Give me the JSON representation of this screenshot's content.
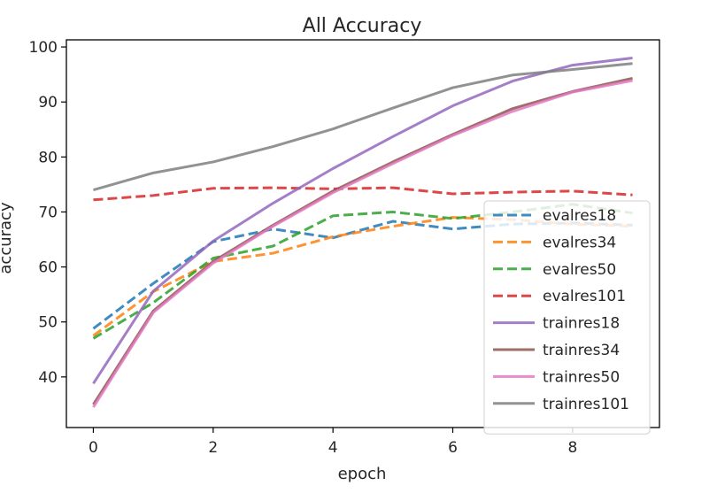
{
  "chart_data": {
    "type": "line",
    "title": "All Accuracy",
    "xlabel": "epoch",
    "ylabel": "accuracy",
    "x": [
      0,
      1,
      2,
      3,
      4,
      5,
      6,
      7,
      8,
      9
    ],
    "xlim": [
      -0.45,
      9.45
    ],
    "ylim": [
      30.8,
      101.3
    ],
    "xticks": [
      0,
      2,
      4,
      6,
      8
    ],
    "yticks": [
      40,
      50,
      60,
      70,
      80,
      90,
      100
    ],
    "grid": false,
    "legend_position": "center-right",
    "series": [
      {
        "name": "evalres18",
        "color": "#1f77b4",
        "dash": "dashed",
        "values": [
          48.8,
          57.0,
          64.6,
          66.9,
          65.3,
          68.3,
          66.9,
          67.8,
          68.0,
          67.6
        ]
      },
      {
        "name": "evalres34",
        "color": "#ff7f0e",
        "dash": "dashed",
        "values": [
          47.5,
          55.5,
          61.0,
          62.5,
          65.5,
          67.4,
          69.0,
          68.6,
          67.8,
          67.4
        ]
      },
      {
        "name": "evalres50",
        "color": "#2ca02c",
        "dash": "dashed",
        "values": [
          47.0,
          53.5,
          61.6,
          63.8,
          69.3,
          70.0,
          68.8,
          70.0,
          71.4,
          69.8
        ]
      },
      {
        "name": "evalres101",
        "color": "#d62728",
        "dash": "dashed",
        "values": [
          72.2,
          73.0,
          74.3,
          74.4,
          74.2,
          74.4,
          73.3,
          73.6,
          73.8,
          73.1
        ]
      },
      {
        "name": "trainres18",
        "color": "#9467bd",
        "dash": "solid",
        "values": [
          38.8,
          55.6,
          64.7,
          71.6,
          77.9,
          83.7,
          89.3,
          93.8,
          96.7,
          98.0
        ]
      },
      {
        "name": "trainres34",
        "color": "#8c564b",
        "dash": "solid",
        "values": [
          35.0,
          52.0,
          61.0,
          67.6,
          73.8,
          79.1,
          84.1,
          88.8,
          91.9,
          94.3
        ]
      },
      {
        "name": "trainres50",
        "color": "#e377c2",
        "dash": "solid",
        "values": [
          34.5,
          51.7,
          60.7,
          67.4,
          73.5,
          78.8,
          83.9,
          88.3,
          91.8,
          93.9
        ]
      },
      {
        "name": "trainres101",
        "color": "#7f7f7f",
        "dash": "solid",
        "values": [
          74.0,
          77.1,
          79.1,
          81.9,
          85.1,
          88.9,
          92.6,
          94.9,
          95.9,
          97.0
        ]
      }
    ]
  }
}
